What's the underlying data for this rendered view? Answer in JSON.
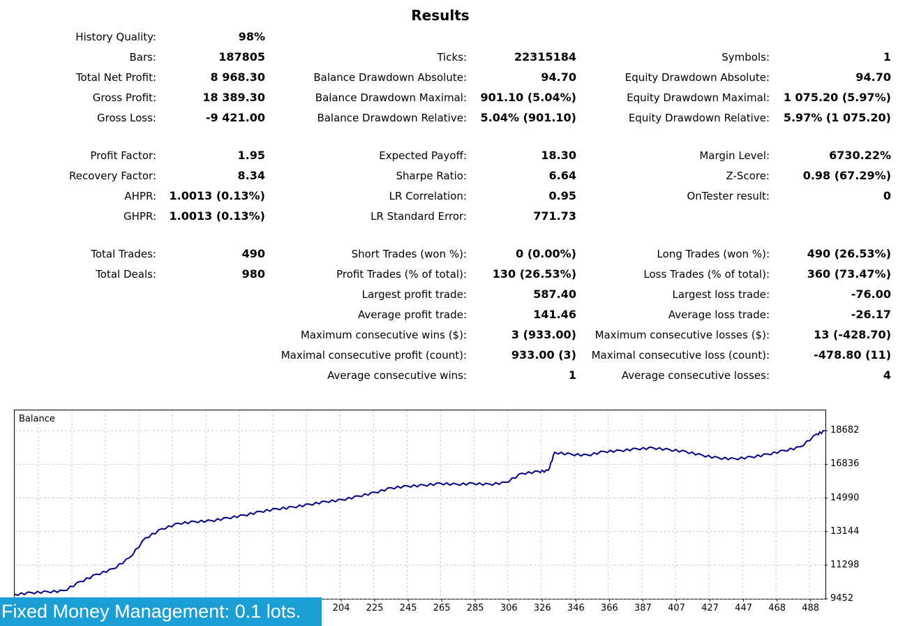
{
  "title": "Results",
  "col1": [
    {
      "label": "History Quality:",
      "value": "98%"
    },
    {
      "label": "Bars:",
      "value": "187805"
    },
    {
      "label": "Total Net Profit:",
      "value": "8 968.30"
    },
    {
      "label": "Gross Profit:",
      "value": "18 389.30"
    },
    {
      "label": "Gross Loss:",
      "value": "-9 421.00"
    },
    {
      "label": "Profit Factor:",
      "value": "1.95"
    },
    {
      "label": "Recovery Factor:",
      "value": "8.34"
    },
    {
      "label": "AHPR:",
      "value": "1.0013 (0.13%)"
    },
    {
      "label": "GHPR:",
      "value": "1.0013 (0.13%)"
    },
    {
      "label": "Total Trades:",
      "value": "490"
    },
    {
      "label": "Total Deals:",
      "value": "980"
    }
  ],
  "col2": [
    {
      "label": "Ticks:",
      "value": "22315184"
    },
    {
      "label": "Balance Drawdown Absolute:",
      "value": "94.70"
    },
    {
      "label": "Balance Drawdown Maximal:",
      "value": "901.10 (5.04%)"
    },
    {
      "label": "Balance Drawdown Relative:",
      "value": "5.04% (901.10)"
    },
    {
      "label": "Expected Payoff:",
      "value": "18.30"
    },
    {
      "label": "Sharpe Ratio:",
      "value": "6.64"
    },
    {
      "label": "LR Correlation:",
      "value": "0.95"
    },
    {
      "label": "LR Standard Error:",
      "value": "771.73"
    },
    {
      "label": "Short Trades (won %):",
      "value": "0 (0.00%)"
    },
    {
      "label": "Profit Trades (% of total):",
      "value": "130 (26.53%)"
    },
    {
      "label": "Largest profit trade:",
      "value": "587.40"
    },
    {
      "label": "Average profit trade:",
      "value": "141.46"
    },
    {
      "label": "Maximum consecutive wins ($):",
      "value": "3 (933.00)"
    },
    {
      "label": "Maximal consecutive profit (count):",
      "value": "933.00 (3)"
    },
    {
      "label": "Average consecutive wins:",
      "value": "1"
    }
  ],
  "col3": [
    {
      "label": "Symbols:",
      "value": "1"
    },
    {
      "label": "Equity Drawdown Absolute:",
      "value": "94.70"
    },
    {
      "label": "Equity Drawdown Maximal:",
      "value": "1 075.20 (5.97%)"
    },
    {
      "label": "Equity Drawdown Relative:",
      "value": "5.97% (1 075.20)"
    },
    {
      "label": "Margin Level:",
      "value": "6730.22%"
    },
    {
      "label": "Z-Score:",
      "value": "0.98 (67.29%)"
    },
    {
      "label": "OnTester result:",
      "value": "0"
    },
    {
      "label": "Long Trades (won %):",
      "value": "490 (26.53%)"
    },
    {
      "label": "Loss Trades (% of total):",
      "value": "360 (73.47%)"
    },
    {
      "label": "Largest loss trade:",
      "value": "-76.00"
    },
    {
      "label": "Average loss trade:",
      "value": "-26.17"
    },
    {
      "label": "Maximum consecutive losses ($):",
      "value": "13 (-428.70)"
    },
    {
      "label": "Maximal consecutive loss (count):",
      "value": "-478.80 (11)"
    },
    {
      "label": "Average consecutive losses:",
      "value": "4"
    }
  ],
  "banner": "Fixed Money Management: 0.1 lots.",
  "chart_data": {
    "type": "line",
    "title": "Balance",
    "series": [
      {
        "color": "#00008b",
        "x": [
          0,
          10,
          20,
          30,
          40,
          50,
          60,
          70,
          80,
          90,
          100,
          110,
          120,
          130,
          140,
          150,
          160,
          170,
          180,
          190,
          200,
          210,
          220,
          230,
          240,
          250,
          260,
          270,
          280,
          290,
          300,
          310,
          320,
          326,
          330,
          340,
          350,
          360,
          370,
          380,
          390,
          400,
          410,
          420,
          430,
          440,
          450,
          460,
          470,
          480,
          490,
          495
        ],
        "values": [
          9700,
          9800,
          9850,
          9900,
          10400,
          10800,
          11100,
          11700,
          12800,
          13300,
          13600,
          13700,
          13750,
          13900,
          14050,
          14250,
          14400,
          14500,
          14650,
          14800,
          14900,
          15100,
          15300,
          15550,
          15650,
          15700,
          15800,
          15750,
          15800,
          15750,
          15850,
          16350,
          16450,
          16500,
          17500,
          17400,
          17350,
          17550,
          17600,
          17700,
          17750,
          17650,
          17550,
          17350,
          17200,
          17150,
          17250,
          17400,
          17600,
          17800,
          18500,
          18682
        ]
      }
    ],
    "y_ticks": [
      "18682",
      "16836",
      "14990",
      "13144",
      "11298",
      "9452"
    ],
    "x_ticks": [
      "204",
      "225",
      "245",
      "265",
      "285",
      "306",
      "326",
      "346",
      "366",
      "387",
      "407",
      "427",
      "447",
      "468",
      "488"
    ],
    "ylim": [
      9452,
      19800
    ],
    "xlim": [
      0,
      495
    ],
    "grid": true
  }
}
